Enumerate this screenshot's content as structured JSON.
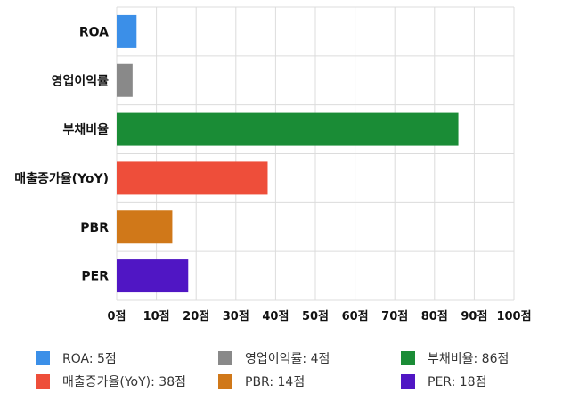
{
  "chart_data": {
    "type": "bar",
    "orientation": "horizontal",
    "categories": [
      "ROA",
      "영업이익률",
      "부채비율",
      "매출증가율(YoY)",
      "PBR",
      "PER"
    ],
    "values": [
      5,
      4,
      86,
      38,
      14,
      18
    ],
    "colors": [
      "#3b8fe8",
      "#898989",
      "#1a8c36",
      "#ee4e3a",
      "#d07819",
      "#5016c4"
    ],
    "xlim": [
      0,
      100
    ],
    "x_ticks": [
      "0점",
      "10점",
      "20점",
      "30점",
      "40점",
      "50점",
      "60점",
      "70점",
      "80점",
      "90점",
      "100점"
    ],
    "grid": true,
    "legend_position": "bottom",
    "legend": [
      {
        "label": "ROA: 5점",
        "color": "#3b8fe8"
      },
      {
        "label": "영업이익률: 4점",
        "color": "#898989"
      },
      {
        "label": "부채비율: 86점",
        "color": "#1a8c36"
      },
      {
        "label": "매출증가율(YoY): 38점",
        "color": "#ee4e3a"
      },
      {
        "label": "PBR: 14점",
        "color": "#d07819"
      },
      {
        "label": "PER: 18점",
        "color": "#5016c4"
      }
    ]
  }
}
